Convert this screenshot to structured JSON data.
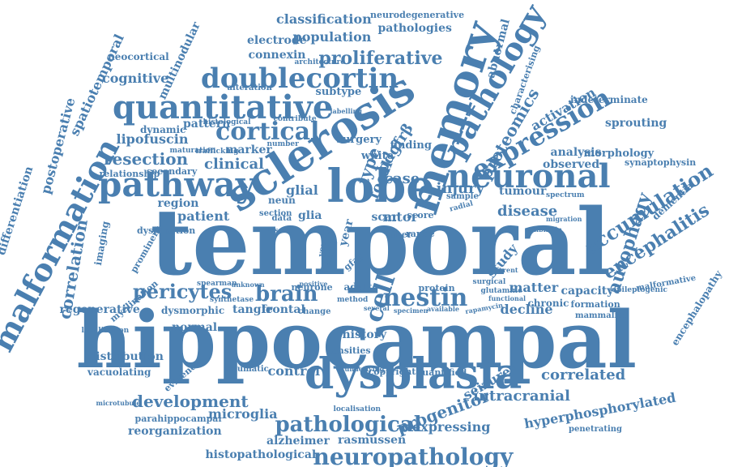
{
  "colors": {
    "word": "#4a7fb0",
    "background": "#ffffff"
  },
  "words": [
    "hippocampal",
    "temporal",
    "sclerosis",
    "memory",
    "lobe",
    "neuronal",
    "quantitative",
    "pathway",
    "dysplasia",
    "doublecortin",
    "cortical",
    "pathology",
    "expression",
    "neuropathology",
    "malformation",
    "nestin",
    "pericytes",
    "brain",
    "development",
    "pathological",
    "proliferative",
    "resection",
    "accumulation",
    "encephalitis",
    "autophagy",
    "correlation",
    "proteomics",
    "cell",
    "progenitor",
    "intracranial",
    "injury",
    "disease",
    "seizure",
    "correlated",
    "classification",
    "population",
    "pathologies",
    "electrode",
    "connexin",
    "lipofuscin",
    "cognitive",
    "clinical",
    "glial",
    "patient",
    "region",
    "type",
    "focal",
    "pdgfrβ",
    "case",
    "mtor",
    "microglia",
    "alzheimer",
    "rasmussen",
    "expressing",
    "hyperphosphorylated",
    "spatiotemporal",
    "multinodular",
    "neocortical",
    "differentiation",
    "postoperative",
    "neurodegenerative",
    "abnormal",
    "characterising",
    "activation",
    "indeterminate",
    "observed",
    "sprouting",
    "analysis",
    "morphology",
    "synaptophysin",
    "dementia",
    "tumour",
    "spectrum",
    "radial",
    "decline",
    "matter",
    "chronic",
    "capacity",
    "formation",
    "mammalian",
    "encephalopathy",
    "malformative",
    "epileptogenic",
    "study",
    "normal",
    "dysmorphic",
    "regenerative",
    "tangle",
    "frontal",
    "control",
    "distribution",
    "vacuolating",
    "evidence",
    "history",
    "densities",
    "reorganization",
    "histopathological",
    "parahippocampal",
    "copyright",
    "quantified",
    "penetrating",
    "imaging",
    "prominent",
    "dysfunction",
    "relationship",
    "secondary",
    "marker",
    "pattern",
    "dynamic",
    "subtype",
    "surgery",
    "white",
    "finding",
    "fiber",
    "adult",
    "protein",
    "neurone",
    "method",
    "alteration",
    "histological",
    "architecture",
    "maturation",
    "trafficking",
    "number",
    "contribute",
    "glia",
    "neun",
    "data",
    "section",
    "young",
    "gfap",
    "scar",
    "score",
    "range",
    "deficit",
    "year",
    "tissue",
    "localization",
    "microtubule",
    "traumatic",
    "underlying",
    "localisation",
    "specimen",
    "change",
    "synthetase",
    "glutamine",
    "surgical",
    "sample",
    "labelling",
    "myelination",
    "spearman",
    "unknown",
    "positive",
    "several",
    "available",
    "rapamycin",
    "functional",
    "calbindin",
    "migration",
    "different"
  ]
}
